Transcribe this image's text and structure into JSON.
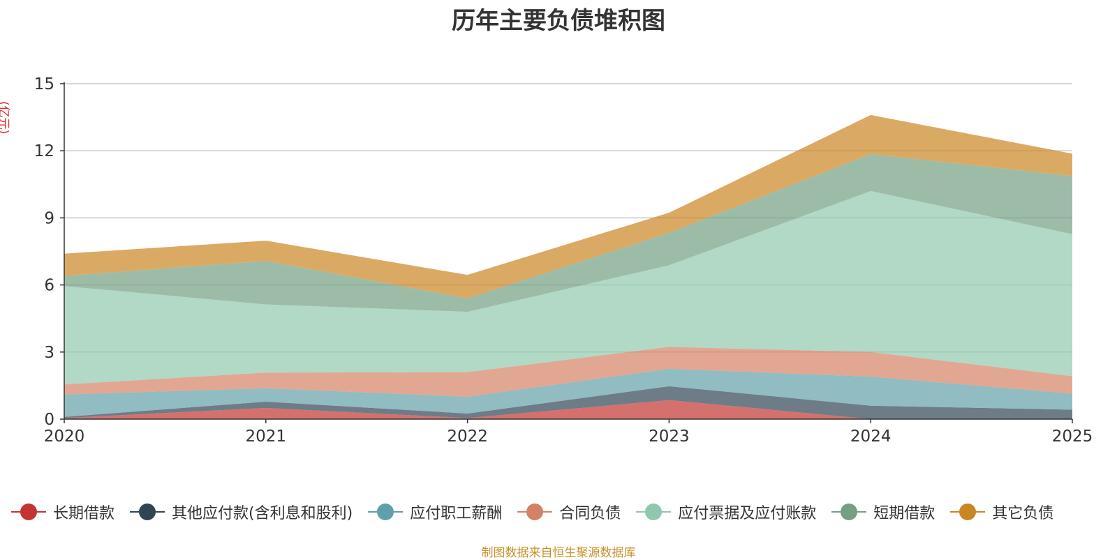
{
  "chart_data": {
    "type": "area",
    "stacked": true,
    "title": "历年主要负债堆积图",
    "unit_label": "(亿元)",
    "x": [
      "2020",
      "2021",
      "2022",
      "2023",
      "2024",
      "2025"
    ],
    "ylim": [
      0,
      15
    ],
    "yticks": [
      "0",
      "3",
      "6",
      "9",
      "12",
      "15"
    ],
    "grid": true,
    "legend_position": "bottom",
    "series": [
      {
        "name": "长期借款",
        "color": "#c23531",
        "values": [
          0.05,
          0.5,
          0.05,
          0.85,
          0.0,
          0.0
        ]
      },
      {
        "name": "其他应付款(含利息和股利)",
        "color": "#2f4554",
        "values": [
          0.05,
          0.28,
          0.2,
          0.62,
          0.6,
          0.42
        ]
      },
      {
        "name": "应付职工薪酬",
        "color": "#61a0a8",
        "values": [
          1.0,
          0.6,
          0.75,
          0.78,
          1.3,
          0.72
        ]
      },
      {
        "name": "合同负债",
        "color": "#d48265",
        "values": [
          0.45,
          0.7,
          1.1,
          0.98,
          1.1,
          0.78
        ]
      },
      {
        "name": "应付票据及应付账款",
        "color": "#91c7ae",
        "values": [
          4.4,
          3.05,
          2.7,
          3.65,
          7.2,
          6.35
        ]
      },
      {
        "name": "短期借款",
        "color": "#749f83",
        "values": [
          0.45,
          1.95,
          0.6,
          1.45,
          1.65,
          2.6
        ]
      },
      {
        "name": "其它负债",
        "color": "#ca8622",
        "values": [
          1.0,
          0.9,
          1.05,
          0.9,
          1.75,
          1.0
        ]
      }
    ]
  },
  "footer": {
    "source_note": "制图数据来自恒生聚源数据库"
  }
}
